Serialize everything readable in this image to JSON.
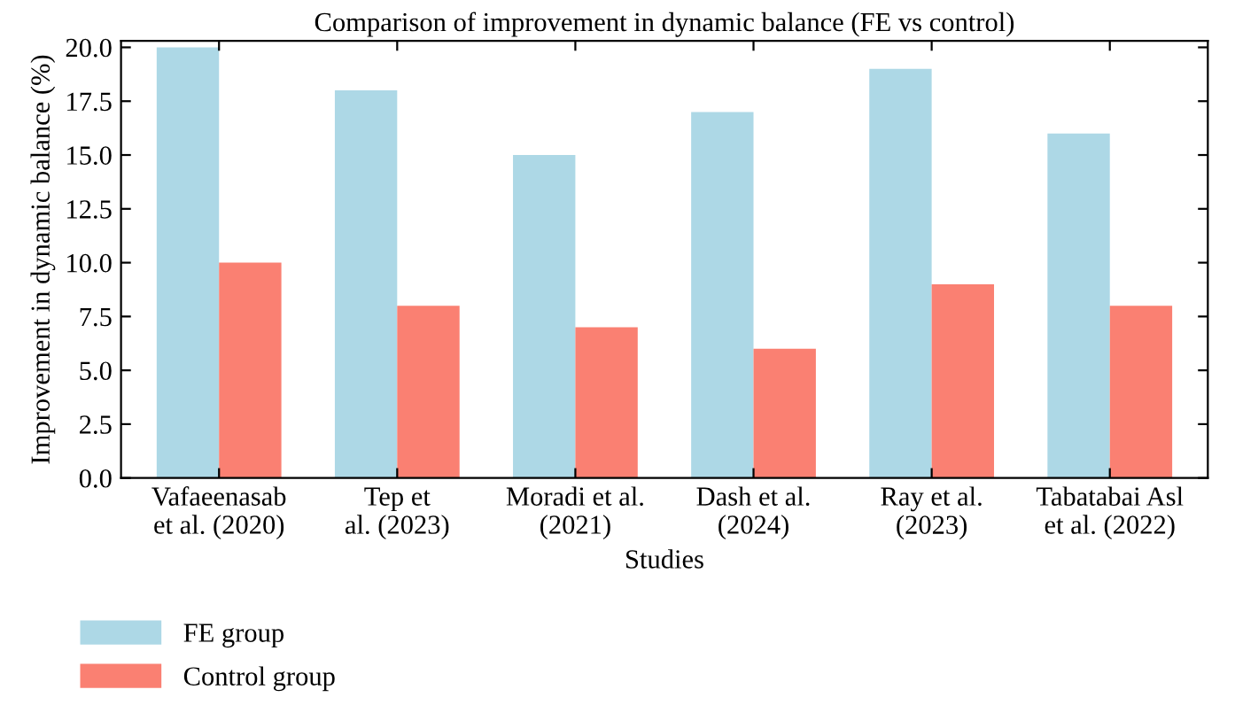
{
  "chart_data": {
    "type": "bar",
    "title": "Comparison of improvement in dynamic balance (FE vs control)",
    "xlabel": "Studies",
    "ylabel": "Improvement in dynamic balance (%)",
    "categories": [
      "Vafaeenasab\net al. (2020)",
      "Tep et\nal. (2023)",
      "Moradi et al.\n(2021)",
      "Dash et al.\n(2024)",
      "Ray et al.\n(2023)",
      "Tabatabai Asl\net al. (2022)"
    ],
    "series": [
      {
        "name": "FE group",
        "color": "#add8e6",
        "values": [
          20,
          18,
          15,
          17,
          19,
          16
        ]
      },
      {
        "name": "Control group",
        "color": "#fa8072",
        "values": [
          10,
          8,
          7,
          6,
          9,
          8
        ]
      }
    ],
    "ylim": [
      0,
      20.3
    ],
    "yticks": [
      {
        "value": 0,
        "label": "0.0"
      },
      {
        "value": 2.5,
        "label": "2.5"
      },
      {
        "value": 5,
        "label": "5.0"
      },
      {
        "value": 7.5,
        "label": "7.5"
      },
      {
        "value": 10,
        "label": "10.0"
      },
      {
        "value": 12.5,
        "label": "12.5"
      },
      {
        "value": 15,
        "label": "15.0"
      },
      {
        "value": 17.5,
        "label": "17.5"
      },
      {
        "value": 20,
        "label": "20.0"
      }
    ],
    "grid": false,
    "legend": "bottom left"
  }
}
